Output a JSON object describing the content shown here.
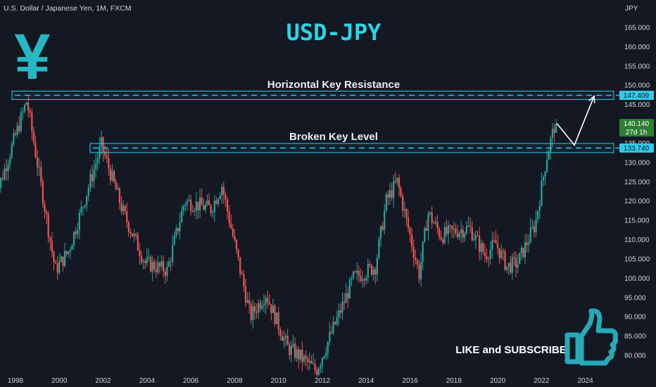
{
  "header": {
    "symbol_line": "U.S. Dollar / Japanese Yen, 1M, FXCM",
    "currency": "JPY"
  },
  "title": "USD-JPY",
  "logo_text": "¥",
  "cta": "LIKE and SUBSCRIBE",
  "chart_data": {
    "type": "candlestick",
    "title": "USD-JPY",
    "x_axis_ticks": [
      "1998",
      "2000",
      "2002",
      "2004",
      "2006",
      "2008",
      "2010",
      "2012",
      "2014",
      "2016",
      "2018",
      "2020",
      "2022",
      "2024"
    ],
    "y_axis_ticks": [
      "165.000",
      "160.000",
      "155.000",
      "150.000",
      "145.000",
      "140.000",
      "135.000",
      "130.000",
      "125.000",
      "120.000",
      "115.000",
      "110.000",
      "105.000",
      "100.000",
      "95.000",
      "90.000",
      "85.000",
      "80.000"
    ],
    "ylim": [
      78,
      167
    ],
    "xlim": [
      1997.0,
      2025.8
    ],
    "levels": [
      {
        "label": "Horizontal Key Resistance",
        "price": 147.409,
        "price_label": "147.409"
      },
      {
        "label": "Broken Key Level",
        "price": 133.74,
        "price_label": "133.740"
      }
    ],
    "last_price": {
      "value": 140.14,
      "price_label": "140.140",
      "countdown": "27d 1h"
    },
    "projection_path": [
      [
        2022.7,
        140.1
      ],
      [
        2023.5,
        134.5
      ],
      [
        2024.4,
        147.2
      ]
    ],
    "anchors": [
      [
        1997.0,
        118
      ],
      [
        1998.6,
        146
      ],
      [
        1999.9,
        102
      ],
      [
        2000.5,
        107
      ],
      [
        2001.0,
        116
      ],
      [
        2002.0,
        134.5
      ],
      [
        2003.0,
        117
      ],
      [
        2004.0,
        104
      ],
      [
        2005.0,
        102
      ],
      [
        2005.8,
        120
      ],
      [
        2007.0,
        118
      ],
      [
        2007.5,
        124
      ],
      [
        2008.8,
        90
      ],
      [
        2009.5,
        96
      ],
      [
        2010.5,
        82
      ],
      [
        2011.0,
        80
      ],
      [
        2011.8,
        76
      ],
      [
        2012.8,
        90
      ],
      [
        2013.5,
        100
      ],
      [
        2014.5,
        103
      ],
      [
        2015.0,
        120
      ],
      [
        2015.5,
        125
      ],
      [
        2016.5,
        101
      ],
      [
        2016.9,
        117
      ],
      [
        2017.5,
        111
      ],
      [
        2018.0,
        112
      ],
      [
        2018.8,
        113
      ],
      [
        2019.5,
        106
      ],
      [
        2020.0,
        109
      ],
      [
        2020.5,
        103
      ],
      [
        2021.0,
        104
      ],
      [
        2021.8,
        114
      ],
      [
        2022.3,
        131
      ],
      [
        2022.7,
        140.1
      ]
    ],
    "colors": {
      "up": "#26a69a",
      "down": "#ef5350",
      "level": "#33c9e8",
      "title": "#29d6e6"
    }
  }
}
